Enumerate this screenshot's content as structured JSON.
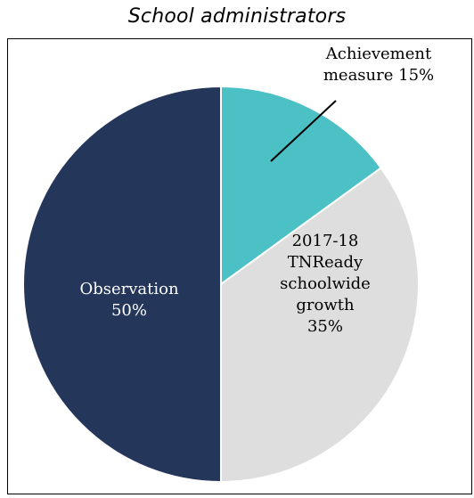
{
  "chart_data": {
    "type": "pie",
    "title": "School administrators",
    "slices": [
      {
        "label": "Achievement measure",
        "value": 15,
        "value_label": "15%",
        "color": "#4BC1C6",
        "label_lines": [
          "Achievement",
          "measure 15%"
        ],
        "label_color": "#000000"
      },
      {
        "label": "2017-18 TNReady schoolwide growth",
        "value": 35,
        "value_label": "35%",
        "color": "#DEDEDE",
        "label_lines": [
          "2017-18",
          "TNReady",
          "schoolwide",
          "growth",
          "35%"
        ],
        "label_color": "#000000"
      },
      {
        "label": "Observation",
        "value": 50,
        "value_label": "50%",
        "color": "#24365A",
        "label_lines": [
          "Observation",
          "50%"
        ],
        "label_color": "#FFFFFF"
      }
    ],
    "start_angle_deg": 0,
    "direction": "clockwise",
    "leader_line_color": "#000000"
  }
}
